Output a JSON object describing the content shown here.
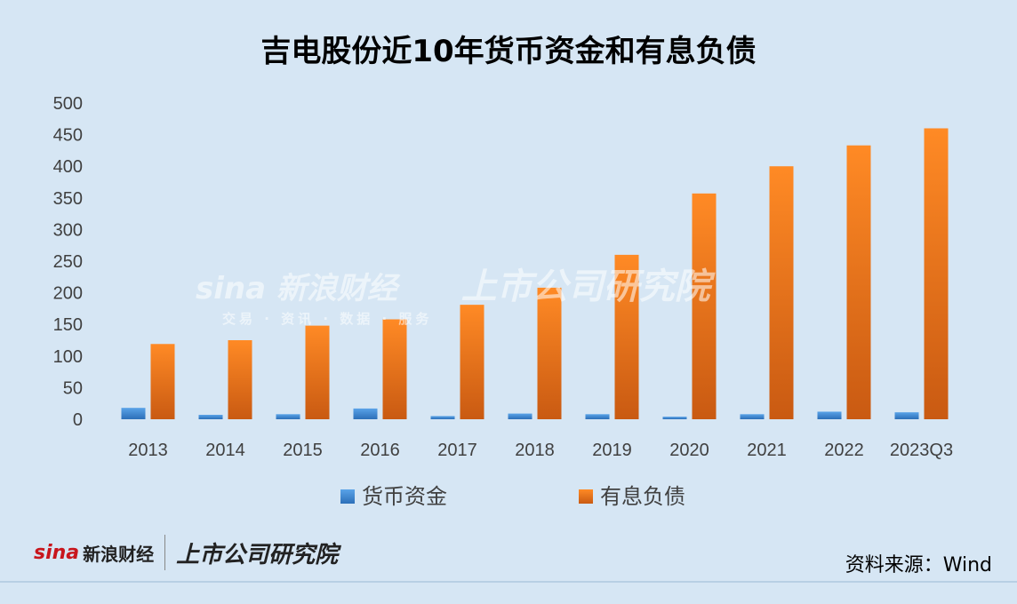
{
  "chart_data": {
    "type": "bar",
    "title": "吉电股份近10年货币资金和有息负债",
    "categories": [
      "2013",
      "2014",
      "2015",
      "2016",
      "2017",
      "2018",
      "2019",
      "2020",
      "2021",
      "2022",
      "2023Q3"
    ],
    "series": [
      {
        "name": "货币资金",
        "color": "#3a87d6",
        "values": [
          18,
          7,
          8,
          17,
          5,
          9,
          8,
          4,
          8,
          12,
          11
        ]
      },
      {
        "name": "有息负债",
        "color": "#f07a1f",
        "values": [
          119,
          125,
          148,
          158,
          181,
          208,
          260,
          357,
          400,
          433,
          460
        ]
      }
    ],
    "ylim": [
      0,
      500
    ],
    "yticks": [
      0,
      50,
      100,
      150,
      200,
      250,
      300,
      350,
      400,
      450,
      500
    ],
    "legend_position": "bottom",
    "grid": false
  },
  "watermark": {
    "logo": "sina",
    "name": "新浪财经",
    "sub": "交易 · 资讯 · 数据 · 服务",
    "institute": "上市公司研究院"
  },
  "footer": {
    "brand_logo": "sina",
    "brand_name": "新浪财经",
    "institute": "上市公司研究院",
    "source": "资料来源：Wind"
  }
}
